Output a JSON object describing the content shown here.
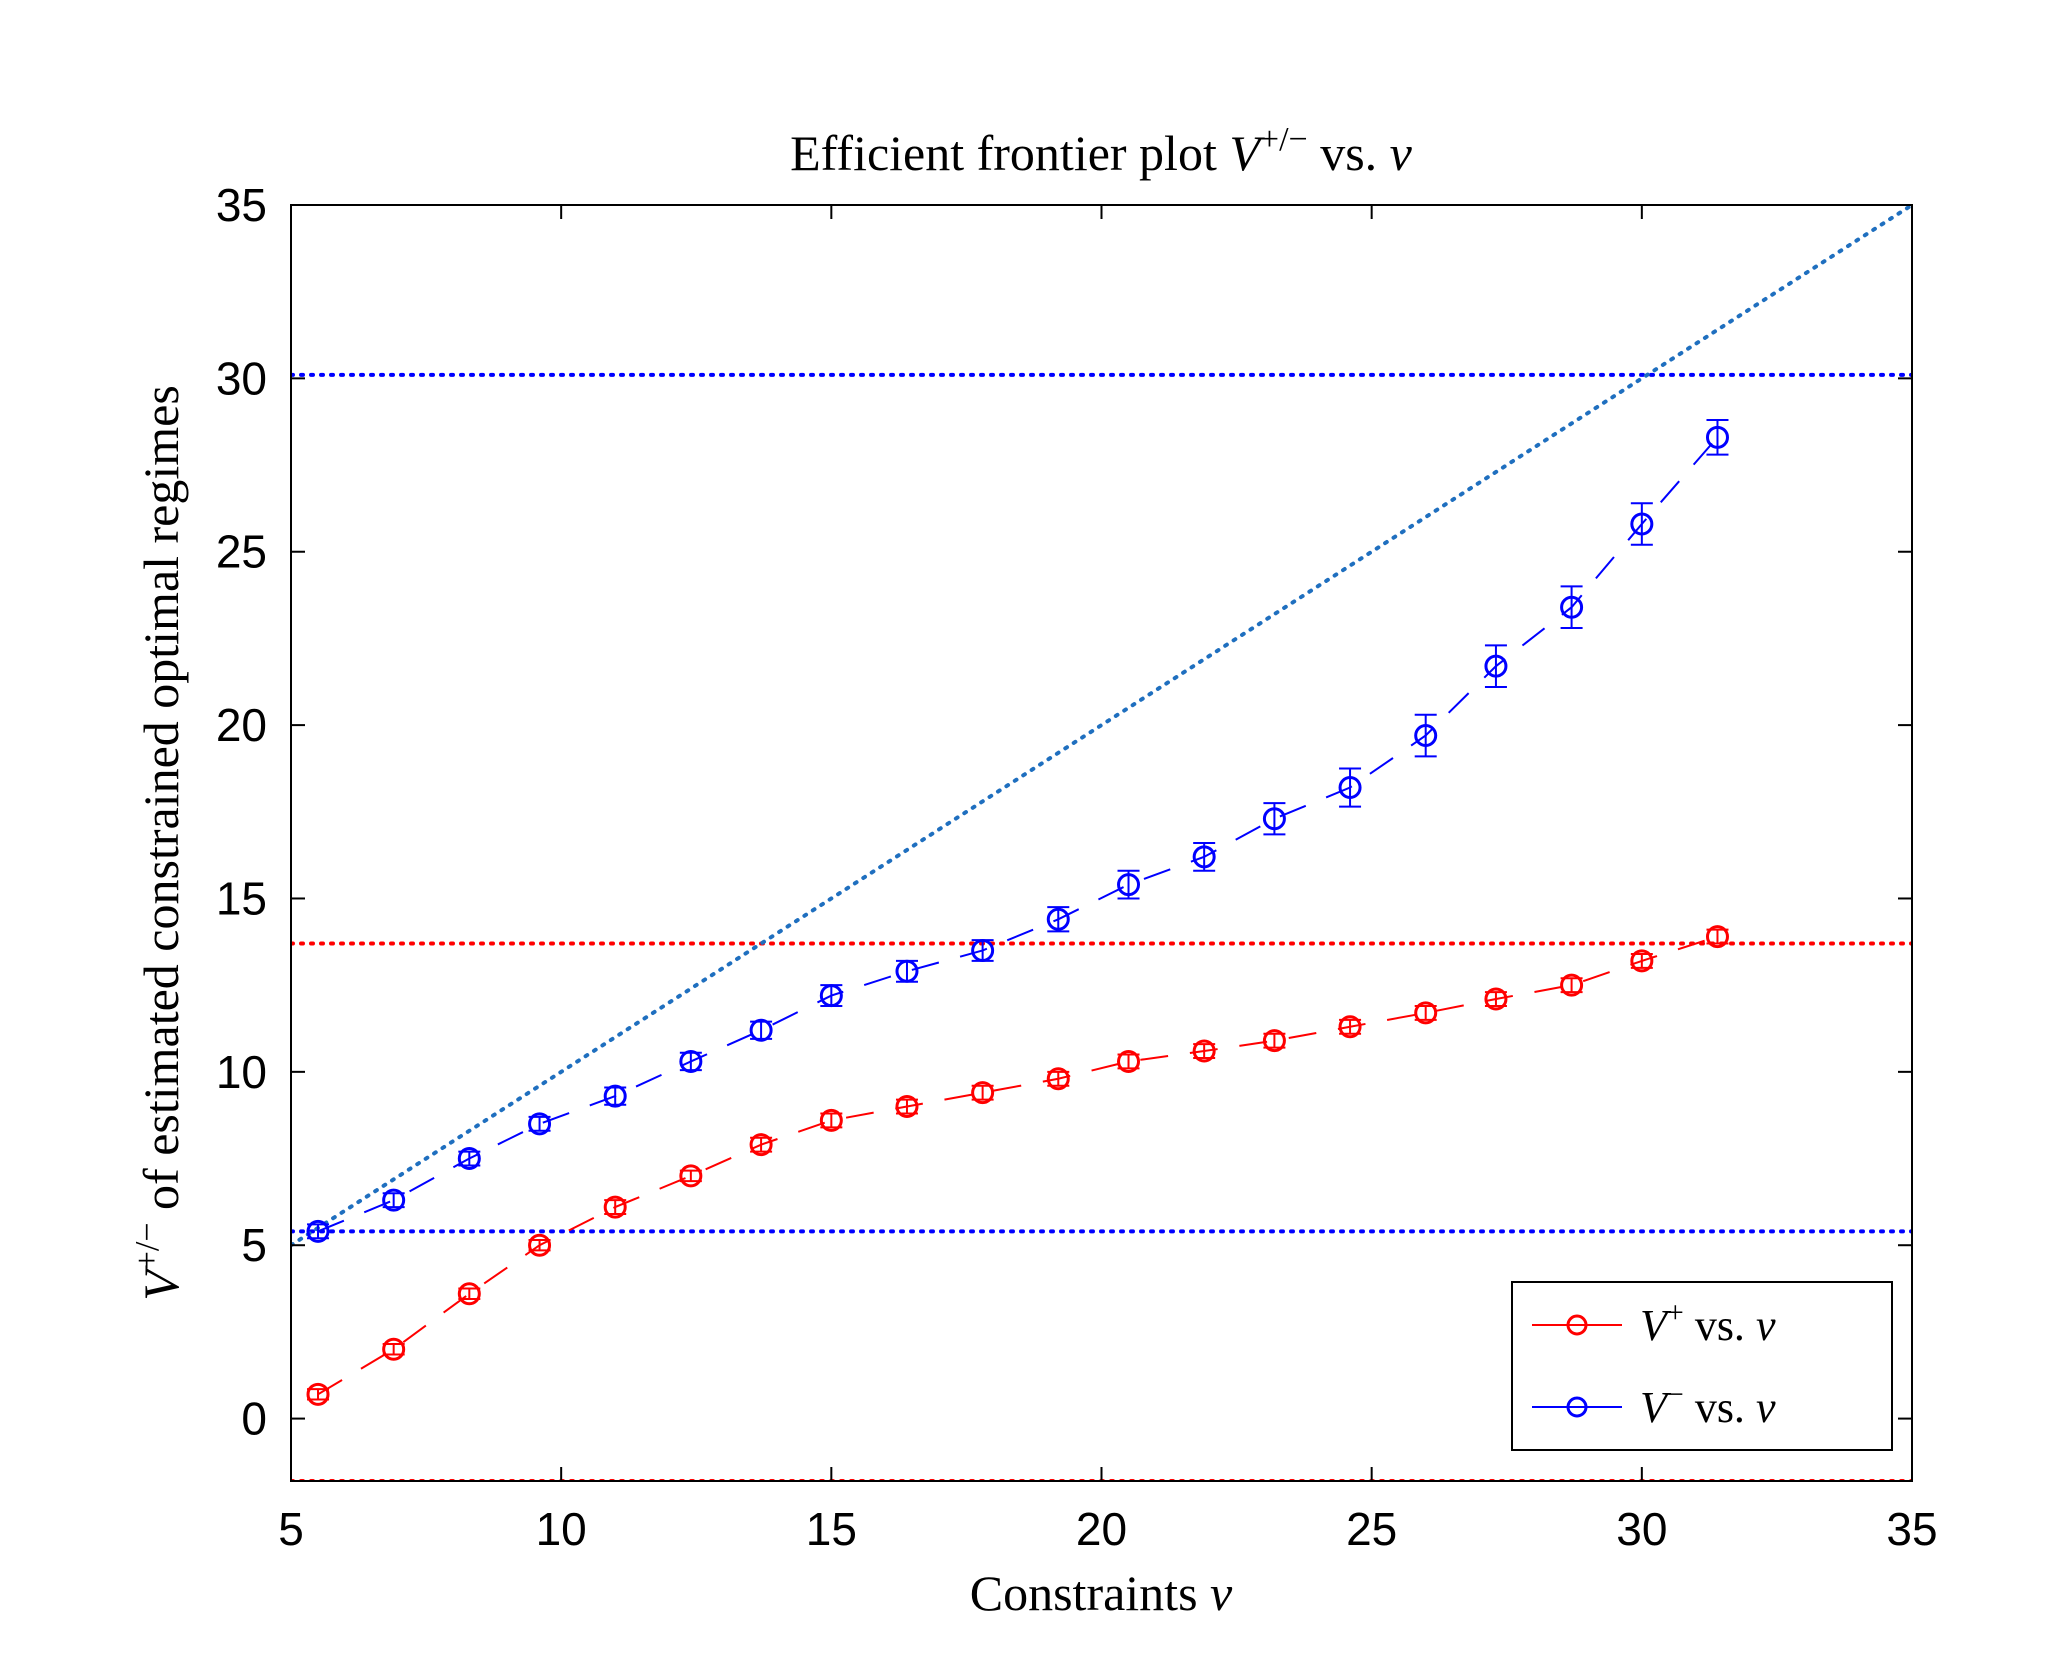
{
  "chart_data": {
    "type": "line",
    "title": {
      "prefix": "Efficient frontier plot ",
      "symbol": "V",
      "superscript": "+/−",
      "suffix": " vs. ",
      "var": "ν"
    },
    "xlabel": {
      "text": "Constraints ",
      "var": "ν"
    },
    "ylabel": {
      "symbol": "V",
      "superscript": "+/−",
      "text": " of estimated constrained optimal regimes"
    },
    "xlim": [
      5,
      35
    ],
    "ylim": [
      -1.8,
      35
    ],
    "xticks": [
      5,
      10,
      15,
      20,
      25,
      30,
      35
    ],
    "yticks": [
      0,
      5,
      10,
      15,
      20,
      25,
      30,
      35
    ],
    "grid": false,
    "legend_position": "bottom-right",
    "series": [
      {
        "name_symbol": "V",
        "name_superscript": "+",
        "name_suffix": " vs. ",
        "name_var": "ν",
        "color": "#ff0000",
        "marker": "circle",
        "line": "dashed",
        "x": [
          5.5,
          6.9,
          8.3,
          9.6,
          11.0,
          12.4,
          13.7,
          15.0,
          16.4,
          17.8,
          19.2,
          20.5,
          21.9,
          23.2,
          24.6,
          26.0,
          27.3,
          28.7,
          30.0,
          31.4
        ],
        "y": [
          0.7,
          2.0,
          3.6,
          5.0,
          6.1,
          7.0,
          7.9,
          8.6,
          9.0,
          9.4,
          9.8,
          10.3,
          10.6,
          10.9,
          11.3,
          11.7,
          12.1,
          12.5,
          13.2,
          13.9
        ],
        "err": [
          0.15,
          0.15,
          0.15,
          0.15,
          0.2,
          0.15,
          0.2,
          0.2,
          0.2,
          0.2,
          0.2,
          0.2,
          0.2,
          0.2,
          0.2,
          0.2,
          0.2,
          0.2,
          0.2,
          0.2
        ]
      },
      {
        "name_symbol": "V",
        "name_superscript": "−",
        "name_suffix": " vs. ",
        "name_var": "ν",
        "color": "#0000ff",
        "marker": "circle",
        "line": "dashed",
        "x": [
          5.5,
          6.9,
          8.3,
          9.6,
          11.0,
          12.4,
          13.7,
          15.0,
          16.4,
          17.8,
          19.2,
          20.5,
          21.9,
          23.2,
          24.6,
          26.0,
          27.3,
          28.7,
          30.0,
          31.4
        ],
        "y": [
          5.4,
          6.3,
          7.5,
          8.5,
          9.3,
          10.3,
          11.2,
          12.2,
          12.9,
          13.5,
          14.4,
          15.4,
          16.2,
          17.3,
          18.2,
          19.7,
          21.7,
          23.4,
          25.8,
          28.3
        ],
        "err": [
          0.2,
          0.2,
          0.2,
          0.2,
          0.25,
          0.25,
          0.25,
          0.3,
          0.3,
          0.3,
          0.35,
          0.4,
          0.4,
          0.45,
          0.55,
          0.6,
          0.6,
          0.6,
          0.6,
          0.5
        ]
      }
    ],
    "reference_lines": [
      {
        "kind": "horizontal",
        "y": 30.1,
        "color": "#0000ff"
      },
      {
        "kind": "horizontal",
        "y": 5.4,
        "color": "#0000ff"
      },
      {
        "kind": "horizontal",
        "y": 13.7,
        "color": "#ff0000"
      },
      {
        "kind": "horizontal",
        "y": -1.8,
        "color": "#ff0000"
      },
      {
        "kind": "diagonal",
        "x": [
          5,
          35
        ],
        "y": [
          5,
          35
        ],
        "color": "#1f6fbf"
      }
    ]
  }
}
